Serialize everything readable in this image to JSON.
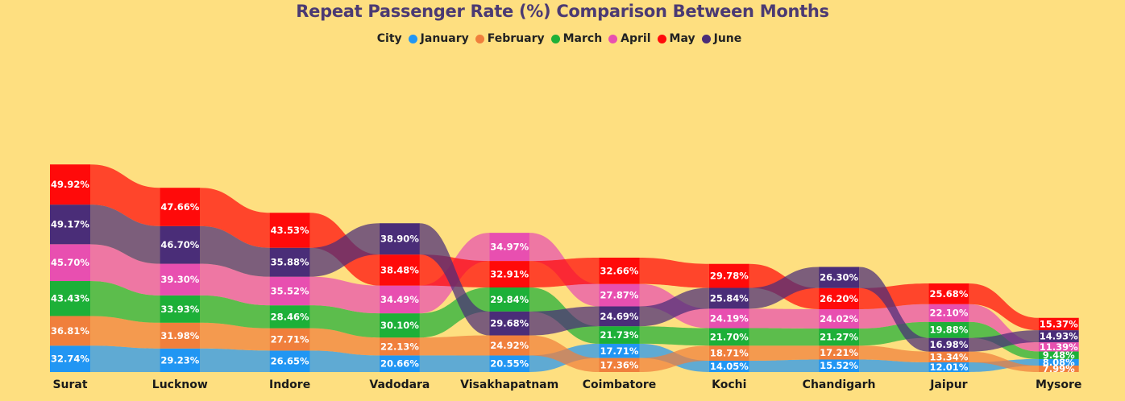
{
  "chart_data": {
    "type": "ribbon",
    "title": "Repeat Passenger Rate (%) Comparison Between Months",
    "legend_title": "City",
    "legend_placement": "top-center",
    "categories": [
      "Surat",
      "Lucknow",
      "Indore",
      "Vadodara",
      "Visakhapatnam",
      "Coimbatore",
      "Kochi",
      "Chandigarh",
      "Jaipur",
      "Mysore"
    ],
    "series": [
      {
        "name": "January",
        "color": "#2196F3",
        "values": [
          32.74,
          29.23,
          26.65,
          20.66,
          20.55,
          17.71,
          14.05,
          15.52,
          12.01,
          8.08
        ]
      },
      {
        "name": "February",
        "color": "#F07F3C",
        "values": [
          36.81,
          31.98,
          27.71,
          22.13,
          24.92,
          17.36,
          18.71,
          17.21,
          13.34,
          7.99
        ]
      },
      {
        "name": "March",
        "color": "#1DB038",
        "values": [
          43.43,
          33.93,
          28.46,
          30.1,
          29.84,
          21.73,
          21.7,
          21.27,
          19.88,
          9.48
        ]
      },
      {
        "name": "April",
        "color": "#E84FB0",
        "values": [
          45.7,
          39.3,
          35.52,
          34.49,
          34.97,
          27.87,
          24.19,
          24.02,
          22.1,
          11.39
        ]
      },
      {
        "name": "May",
        "color": "#FF0A0A",
        "values": [
          49.92,
          47.66,
          43.53,
          38.48,
          32.91,
          32.66,
          29.78,
          26.2,
          25.68,
          15.37
        ]
      },
      {
        "name": "June",
        "color": "#4A2D78",
        "values": [
          49.17,
          46.7,
          35.88,
          38.9,
          29.68,
          24.69,
          25.84,
          26.3,
          16.98,
          14.93
        ]
      }
    ],
    "value_suffix": "%",
    "grid": false
  }
}
